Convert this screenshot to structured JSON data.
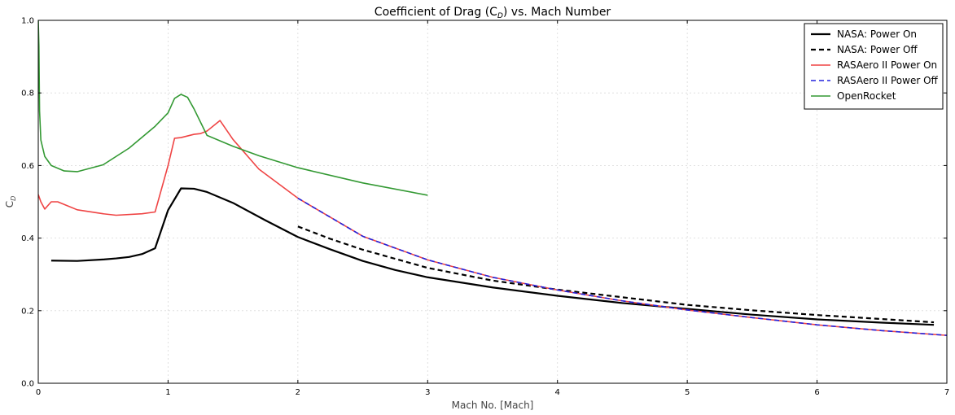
{
  "chart_data": {
    "type": "line",
    "title": "Coefficient of Drag (C",
    "title_sub": "D",
    "title_rest": ") vs. Mach Number",
    "xlabel": "Mach No. [Mach]",
    "ylabel": "C",
    "ylabel_sub": "D",
    "xlim": [
      0,
      7
    ],
    "ylim": [
      0,
      1.0
    ],
    "xticks": [
      0,
      1,
      2,
      3,
      4,
      5,
      6,
      7
    ],
    "xtick_labels": [
      "0",
      "1",
      "2",
      "3",
      "4",
      "5",
      "6",
      "7"
    ],
    "yticks": [
      0,
      0.2,
      0.4,
      0.6,
      0.8,
      1.0
    ],
    "ytick_labels": [
      "0.0",
      "0.2",
      "0.4",
      "0.6",
      "0.8",
      "1.0"
    ],
    "grid": true,
    "legend_position": "top-right",
    "series": [
      {
        "name": "NASA: Power On",
        "color": "#000000",
        "style": "solid",
        "width": 2.2,
        "x": [
          0.1,
          0.3,
          0.5,
          0.6,
          0.7,
          0.8,
          0.9,
          1.0,
          1.1,
          1.2,
          1.3,
          1.5,
          1.75,
          2.0,
          2.25,
          2.5,
          2.75,
          3.0,
          3.5,
          4.0,
          4.5,
          5.0,
          5.5,
          6.0,
          6.5,
          6.9
        ],
        "y": [
          0.338,
          0.337,
          0.341,
          0.344,
          0.348,
          0.356,
          0.372,
          0.477,
          0.537,
          0.536,
          0.527,
          0.497,
          0.449,
          0.403,
          0.369,
          0.337,
          0.312,
          0.292,
          0.264,
          0.241,
          0.221,
          0.205,
          0.189,
          0.176,
          0.167,
          0.161
        ]
      },
      {
        "name": "NASA: Power Off",
        "color": "#000000",
        "style": "dashed",
        "width": 2.2,
        "x": [
          2.0,
          2.25,
          2.5,
          3.0,
          3.5,
          4.0,
          4.5,
          5.0,
          5.5,
          6.0,
          6.5,
          6.9
        ],
        "y": [
          0.432,
          0.398,
          0.368,
          0.318,
          0.283,
          0.258,
          0.237,
          0.216,
          0.201,
          0.188,
          0.177,
          0.168
        ]
      },
      {
        "name": "RASAero II Power On",
        "color": "#ef4444",
        "style": "solid",
        "width": 1.6,
        "x": [
          0.0,
          0.02,
          0.05,
          0.1,
          0.15,
          0.3,
          0.5,
          0.6,
          0.8,
          0.9,
          1.0,
          1.05,
          1.1,
          1.2,
          1.25,
          1.3,
          1.4,
          1.5,
          1.7,
          2.0,
          2.5,
          3.0,
          3.5,
          4.0,
          4.5,
          5.0,
          5.5,
          6.0,
          6.5,
          7.0
        ],
        "y": [
          0.52,
          0.5,
          0.48,
          0.5,
          0.5,
          0.478,
          0.467,
          0.463,
          0.467,
          0.472,
          0.6,
          0.675,
          0.677,
          0.686,
          0.688,
          0.695,
          0.724,
          0.672,
          0.59,
          0.51,
          0.405,
          0.34,
          0.292,
          0.257,
          0.227,
          0.202,
          0.181,
          0.161,
          0.145,
          0.132
        ]
      },
      {
        "name": "RASAero II Power Off",
        "color": "#2222dd",
        "style": "dashed",
        "width": 1.6,
        "x": [
          2.0,
          2.5,
          3.0,
          3.5,
          4.0,
          4.5,
          5.0,
          5.5,
          6.0,
          6.5,
          7.0
        ],
        "y": [
          0.51,
          0.405,
          0.34,
          0.292,
          0.257,
          0.227,
          0.202,
          0.181,
          0.161,
          0.145,
          0.132
        ]
      },
      {
        "name": "OpenRocket",
        "color": "#339933",
        "style": "solid",
        "width": 1.6,
        "x": [
          0.0,
          0.005,
          0.01,
          0.02,
          0.05,
          0.1,
          0.2,
          0.3,
          0.5,
          0.7,
          0.9,
          1.0,
          1.05,
          1.1,
          1.15,
          1.2,
          1.3,
          1.5,
          1.7,
          2.0,
          2.5,
          3.0
        ],
        "y": [
          1.0,
          0.93,
          0.75,
          0.67,
          0.625,
          0.6,
          0.585,
          0.583,
          0.602,
          0.648,
          0.708,
          0.745,
          0.785,
          0.796,
          0.788,
          0.756,
          0.683,
          0.653,
          0.627,
          0.594,
          0.552,
          0.518
        ]
      }
    ]
  }
}
